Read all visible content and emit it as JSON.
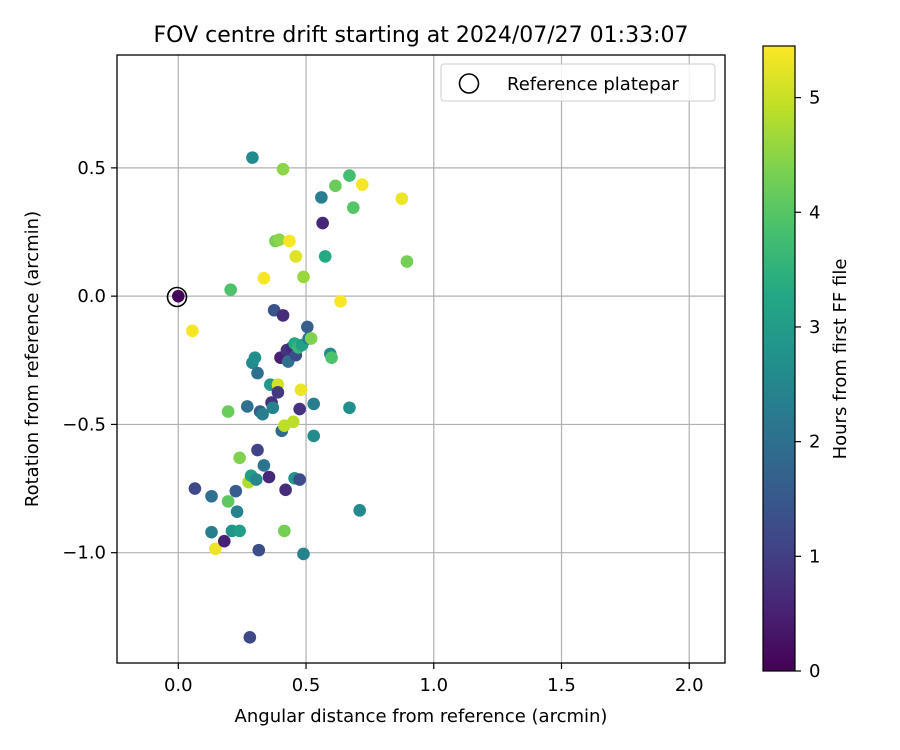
{
  "chart_data": {
    "type": "scatter",
    "title": "FOV centre drift starting at 2024/07/27 01:33:07",
    "xlabel": "Angular distance from reference (arcmin)",
    "ylabel": "Rotation from reference (arcmin)",
    "xlim": [
      -0.24,
      2.14
    ],
    "ylim": [
      -1.43,
      0.94
    ],
    "x_ticks": [
      0.0,
      0.5,
      1.0,
      1.5,
      2.0
    ],
    "x_tick_labels": [
      "0.0",
      "0.5",
      "1.0",
      "1.5",
      "2.0"
    ],
    "y_ticks": [
      0.5,
      0.0,
      -0.5,
      -1.0
    ],
    "y_tick_labels": [
      "0.5",
      "0.0",
      "−0.5",
      "−1.0"
    ],
    "grid": true,
    "legend": {
      "placement": "top-right",
      "entries": [
        {
          "label": "Reference platepar",
          "marker": "open-circle",
          "x": 0.0,
          "y": 0.0
        }
      ]
    },
    "colorbar": {
      "label": "Hours from first FF file",
      "colormap": "viridis",
      "range": [
        0,
        5.45
      ],
      "ticks": [
        0,
        1,
        2,
        3,
        4,
        5
      ],
      "tick_labels": [
        "0",
        "1",
        "2",
        "3",
        "4",
        "5"
      ]
    },
    "points": [
      {
        "x": 0.0,
        "y": 0.0,
        "c": 0.05
      },
      {
        "x": 0.055,
        "y": -0.135,
        "c": 5.4
      },
      {
        "x": 0.065,
        "y": -0.75,
        "c": 1.2
      },
      {
        "x": 0.13,
        "y": -0.78,
        "c": 2.0
      },
      {
        "x": 0.13,
        "y": -0.92,
        "c": 2.3
      },
      {
        "x": 0.145,
        "y": -0.985,
        "c": 5.3
      },
      {
        "x": 0.18,
        "y": -0.955,
        "c": 0.5
      },
      {
        "x": 0.195,
        "y": -0.8,
        "c": 4.1
      },
      {
        "x": 0.195,
        "y": -0.45,
        "c": 4.2
      },
      {
        "x": 0.205,
        "y": 0.025,
        "c": 3.9
      },
      {
        "x": 0.21,
        "y": -0.915,
        "c": 2.8
      },
      {
        "x": 0.225,
        "y": -0.76,
        "c": 1.6
      },
      {
        "x": 0.23,
        "y": -0.84,
        "c": 2.4
      },
      {
        "x": 0.24,
        "y": -0.915,
        "c": 3.0
      },
      {
        "x": 0.24,
        "y": -0.63,
        "c": 4.4
      },
      {
        "x": 0.27,
        "y": -0.43,
        "c": 2.0
      },
      {
        "x": 0.275,
        "y": -0.725,
        "c": 4.8
      },
      {
        "x": 0.28,
        "y": -1.33,
        "c": 1.2
      },
      {
        "x": 0.285,
        "y": -0.7,
        "c": 3.0
      },
      {
        "x": 0.29,
        "y": -0.26,
        "c": 2.6
      },
      {
        "x": 0.29,
        "y": 0.54,
        "c": 2.6
      },
      {
        "x": 0.3,
        "y": -0.24,
        "c": 2.7
      },
      {
        "x": 0.305,
        "y": -0.715,
        "c": 2.5
      },
      {
        "x": 0.31,
        "y": -0.6,
        "c": 1.1
      },
      {
        "x": 0.31,
        "y": -0.3,
        "c": 2.0
      },
      {
        "x": 0.315,
        "y": -0.99,
        "c": 1.3
      },
      {
        "x": 0.32,
        "y": -0.45,
        "c": 1.6
      },
      {
        "x": 0.33,
        "y": -0.46,
        "c": 2.3
      },
      {
        "x": 0.335,
        "y": 0.07,
        "c": 5.4
      },
      {
        "x": 0.335,
        "y": -0.66,
        "c": 2.1
      },
      {
        "x": 0.355,
        "y": -0.705,
        "c": 0.6
      },
      {
        "x": 0.36,
        "y": -0.345,
        "c": 2.9
      },
      {
        "x": 0.365,
        "y": -0.415,
        "c": 0.8
      },
      {
        "x": 0.37,
        "y": -0.435,
        "c": 2.4
      },
      {
        "x": 0.375,
        "y": -0.055,
        "c": 1.4
      },
      {
        "x": 0.38,
        "y": 0.215,
        "c": 4.3
      },
      {
        "x": 0.39,
        "y": -0.345,
        "c": 5.1
      },
      {
        "x": 0.39,
        "y": -0.375,
        "c": 0.9
      },
      {
        "x": 0.395,
        "y": 0.22,
        "c": 4.5
      },
      {
        "x": 0.4,
        "y": -0.24,
        "c": 0.5
      },
      {
        "x": 0.405,
        "y": -0.525,
        "c": 1.9
      },
      {
        "x": 0.41,
        "y": 0.495,
        "c": 4.5
      },
      {
        "x": 0.41,
        "y": -0.075,
        "c": 0.7
      },
      {
        "x": 0.415,
        "y": -0.505,
        "c": 4.9
      },
      {
        "x": 0.415,
        "y": -0.915,
        "c": 4.3
      },
      {
        "x": 0.42,
        "y": -0.755,
        "c": 0.7
      },
      {
        "x": 0.425,
        "y": -0.21,
        "c": 0.8
      },
      {
        "x": 0.43,
        "y": -0.255,
        "c": 2.0
      },
      {
        "x": 0.435,
        "y": 0.215,
        "c": 5.4
      },
      {
        "x": 0.445,
        "y": -0.2,
        "c": 0.6
      },
      {
        "x": 0.45,
        "y": -0.49,
        "c": 4.9
      },
      {
        "x": 0.455,
        "y": -0.71,
        "c": 2.8
      },
      {
        "x": 0.455,
        "y": -0.185,
        "c": 3.3
      },
      {
        "x": 0.46,
        "y": -0.23,
        "c": 1.3
      },
      {
        "x": 0.46,
        "y": 0.155,
        "c": 5.2
      },
      {
        "x": 0.47,
        "y": -0.2,
        "c": 3.6
      },
      {
        "x": 0.475,
        "y": -0.44,
        "c": 0.8
      },
      {
        "x": 0.475,
        "y": -0.715,
        "c": 1.3
      },
      {
        "x": 0.48,
        "y": -0.365,
        "c": 5.3
      },
      {
        "x": 0.485,
        "y": -0.19,
        "c": 3.1
      },
      {
        "x": 0.49,
        "y": -1.005,
        "c": 2.4
      },
      {
        "x": 0.49,
        "y": 0.075,
        "c": 4.6
      },
      {
        "x": 0.505,
        "y": -0.12,
        "c": 1.6
      },
      {
        "x": 0.51,
        "y": -0.165,
        "c": 2.2
      },
      {
        "x": 0.52,
        "y": -0.165,
        "c": 4.4
      },
      {
        "x": 0.53,
        "y": -0.42,
        "c": 2.3
      },
      {
        "x": 0.53,
        "y": -0.545,
        "c": 2.6
      },
      {
        "x": 0.56,
        "y": 0.385,
        "c": 2.3
      },
      {
        "x": 0.565,
        "y": 0.285,
        "c": 0.6
      },
      {
        "x": 0.575,
        "y": 0.155,
        "c": 3.3
      },
      {
        "x": 0.595,
        "y": -0.225,
        "c": 2.6
      },
      {
        "x": 0.6,
        "y": -0.24,
        "c": 3.9
      },
      {
        "x": 0.615,
        "y": 0.43,
        "c": 4.2
      },
      {
        "x": 0.635,
        "y": -0.02,
        "c": 5.4
      },
      {
        "x": 0.67,
        "y": 0.47,
        "c": 3.8
      },
      {
        "x": 0.67,
        "y": -0.435,
        "c": 2.7
      },
      {
        "x": 0.685,
        "y": 0.345,
        "c": 4.0
      },
      {
        "x": 0.71,
        "y": -0.835,
        "c": 2.6
      },
      {
        "x": 0.72,
        "y": 0.435,
        "c": 5.4
      },
      {
        "x": 0.875,
        "y": 0.38,
        "c": 5.3
      },
      {
        "x": 0.895,
        "y": 0.135,
        "c": 4.3
      }
    ]
  }
}
